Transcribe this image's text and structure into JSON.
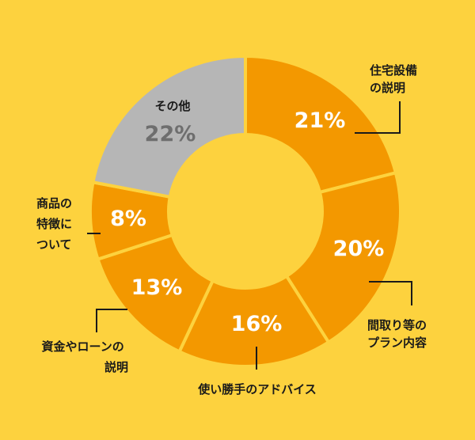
{
  "colors": {
    "background": "#FDD23E",
    "slice_main": "#F39800",
    "slice_other": "#B6B6B6",
    "slice_border": "#FDD23E",
    "label_on_orange": "#FFFFFF",
    "label_on_gray": "#6E6E6E",
    "text_dark": "#1A1A1A"
  },
  "chart_data": {
    "type": "pie",
    "style": "donut",
    "start": "top, clockwise",
    "slices": [
      {
        "label": [
          "住宅設備",
          "の説明"
        ],
        "value": 21,
        "value_label": "21%",
        "color": "#F39800"
      },
      {
        "label": [
          "間取り等の",
          "プラン内容"
        ],
        "value": 20,
        "value_label": "20%",
        "color": "#F39800"
      },
      {
        "label": [
          "使い勝手のアドバイス"
        ],
        "value": 16,
        "value_label": "16%",
        "color": "#F39800"
      },
      {
        "label": [
          "資金やローンの",
          "説明"
        ],
        "value": 13,
        "value_label": "13%",
        "color": "#F39800"
      },
      {
        "label": [
          "商品の",
          "特徴に",
          "ついて"
        ],
        "value": 8,
        "value_label": "8%",
        "color": "#F39800"
      },
      {
        "label": [
          "その他"
        ],
        "value": 22,
        "value_label": "22%",
        "color": "#B6B6B6"
      }
    ]
  }
}
